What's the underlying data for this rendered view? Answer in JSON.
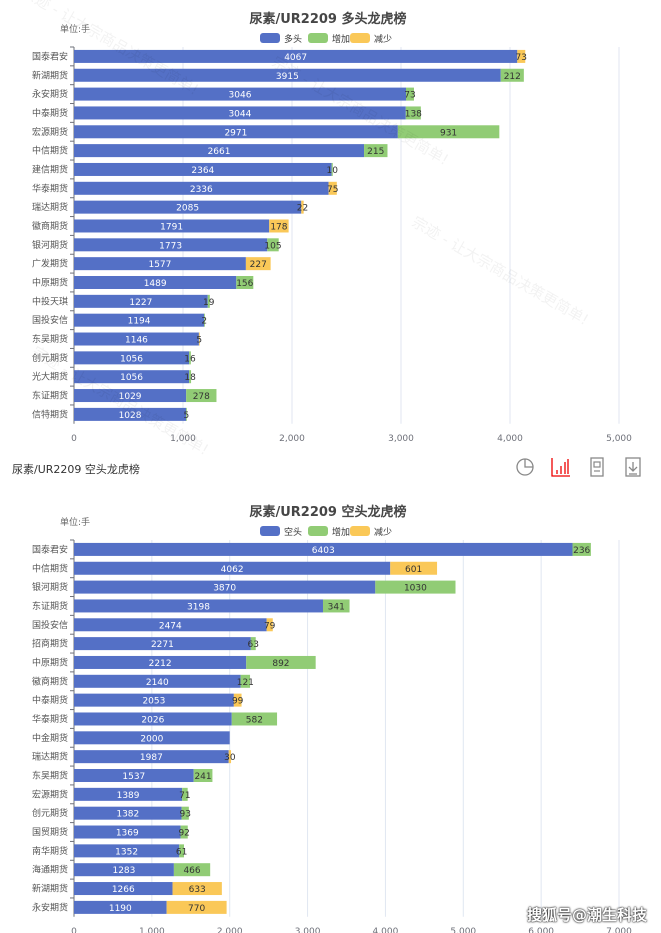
{
  "colors": {
    "base": "#5470c6",
    "increase": "#91cc75",
    "decrease": "#fac858"
  },
  "watermark": "宗迹 - 让大宗商品决策更简单!",
  "footer_credit": "搜狐号@潮生科技",
  "toolbar": {
    "title": "尿素/UR2209 空头龙虎榜",
    "icons": [
      "pie-chart-icon",
      "bar-chart-icon",
      "data-view-icon",
      "download-icon"
    ]
  },
  "chart_data": [
    {
      "type": "bar",
      "orientation": "horizontal",
      "stacked": true,
      "title": "尿素/UR2209 多头龙虎榜",
      "unit_label": "单位:手",
      "legend": [
        "多头",
        "增加",
        "减少"
      ],
      "legend_position": "top",
      "xlim": [
        0,
        5000
      ],
      "xticks": [
        "0",
        "1,000",
        "2,000",
        "3,000",
        "4,000",
        "5,000"
      ],
      "grid": true,
      "categories": [
        "国泰君安",
        "新湖期货",
        "永安期货",
        "中泰期货",
        "宏源期货",
        "中信期货",
        "建信期货",
        "华泰期货",
        "瑞达期货",
        "徽商期货",
        "银河期货",
        "广发期货",
        "中原期货",
        "中投天琪",
        "国投安信",
        "东吴期货",
        "创元期货",
        "光大期货",
        "东证期货",
        "信特期货"
      ],
      "series": [
        {
          "name": "多头",
          "values": [
            4067,
            3915,
            3046,
            3044,
            2971,
            2661,
            2364,
            2336,
            2085,
            1791,
            1773,
            1577,
            1489,
            1227,
            1194,
            1146,
            1056,
            1056,
            1029,
            1028
          ]
        },
        {
          "name": "增加",
          "values": [
            null,
            212,
            73,
            138,
            931,
            215,
            10,
            null,
            null,
            null,
            105,
            null,
            156,
            19,
            2,
            null,
            16,
            18,
            278,
            5
          ]
        },
        {
          "name": "减少",
          "values": [
            73,
            null,
            null,
            null,
            null,
            null,
            null,
            75,
            22,
            178,
            null,
            227,
            null,
            null,
            null,
            5,
            null,
            null,
            null,
            null
          ]
        }
      ]
    },
    {
      "type": "bar",
      "orientation": "horizontal",
      "stacked": true,
      "title": "尿素/UR2209 空头龙虎榜",
      "unit_label": "单位:手",
      "legend": [
        "空头",
        "增加",
        "减少"
      ],
      "legend_position": "top",
      "xlim": [
        0,
        7000
      ],
      "xticks": [
        "0",
        "1,000",
        "2,000",
        "3,000",
        "4,000",
        "5,000",
        "6,000",
        "7,000"
      ],
      "grid": true,
      "categories": [
        "国泰君安",
        "中信期货",
        "银河期货",
        "东证期货",
        "国投安信",
        "招商期货",
        "中原期货",
        "徽商期货",
        "中泰期货",
        "华泰期货",
        "中金期货",
        "瑞达期货",
        "东吴期货",
        "宏源期货",
        "创元期货",
        "国贸期货",
        "南华期货",
        "海通期货",
        "新湖期货",
        "永安期货"
      ],
      "series": [
        {
          "name": "空头",
          "values": [
            6403,
            4062,
            3870,
            3198,
            2474,
            2271,
            2212,
            2140,
            2053,
            2026,
            2000,
            1987,
            1537,
            1389,
            1382,
            1369,
            1352,
            1283,
            1266,
            1190
          ]
        },
        {
          "name": "增加",
          "values": [
            236,
            null,
            1030,
            341,
            null,
            63,
            892,
            121,
            null,
            582,
            null,
            null,
            241,
            71,
            93,
            92,
            61,
            466,
            null,
            null
          ]
        },
        {
          "name": "减少",
          "values": [
            null,
            601,
            null,
            null,
            79,
            null,
            null,
            null,
            99,
            null,
            null,
            30,
            null,
            null,
            null,
            null,
            null,
            null,
            633,
            770
          ]
        }
      ]
    }
  ]
}
